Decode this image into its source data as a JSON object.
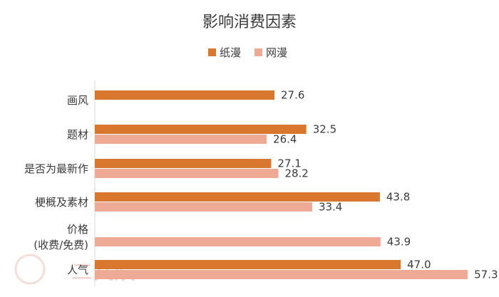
{
  "chart_data": {
    "type": "bar",
    "orientation": "horizontal",
    "title": "影响消费因素",
    "legend_position": "top",
    "categories": [
      [
        "画风"
      ],
      [
        "题材"
      ],
      [
        "是否为最新作"
      ],
      [
        "梗概及素材"
      ],
      [
        "价格",
        "(收费/免费)"
      ],
      [
        "人气"
      ]
    ],
    "series": [
      {
        "name": "纸漫",
        "color": "#d9772f",
        "values": [
          27.6,
          32.5,
          27.1,
          43.8,
          null,
          47.0
        ],
        "labels": [
          "27.6",
          "32.5",
          "27.1",
          "43.8",
          "",
          "47.0"
        ]
      },
      {
        "name": "网漫",
        "color": "#eeaa94",
        "values": [
          null,
          26.4,
          28.2,
          33.4,
          43.9,
          57.3
        ],
        "labels": [
          "",
          "26.4",
          "28.2",
          "33.4",
          "43.9",
          "57.3"
        ]
      }
    ],
    "grid": false
  },
  "watermark": "二文娱"
}
